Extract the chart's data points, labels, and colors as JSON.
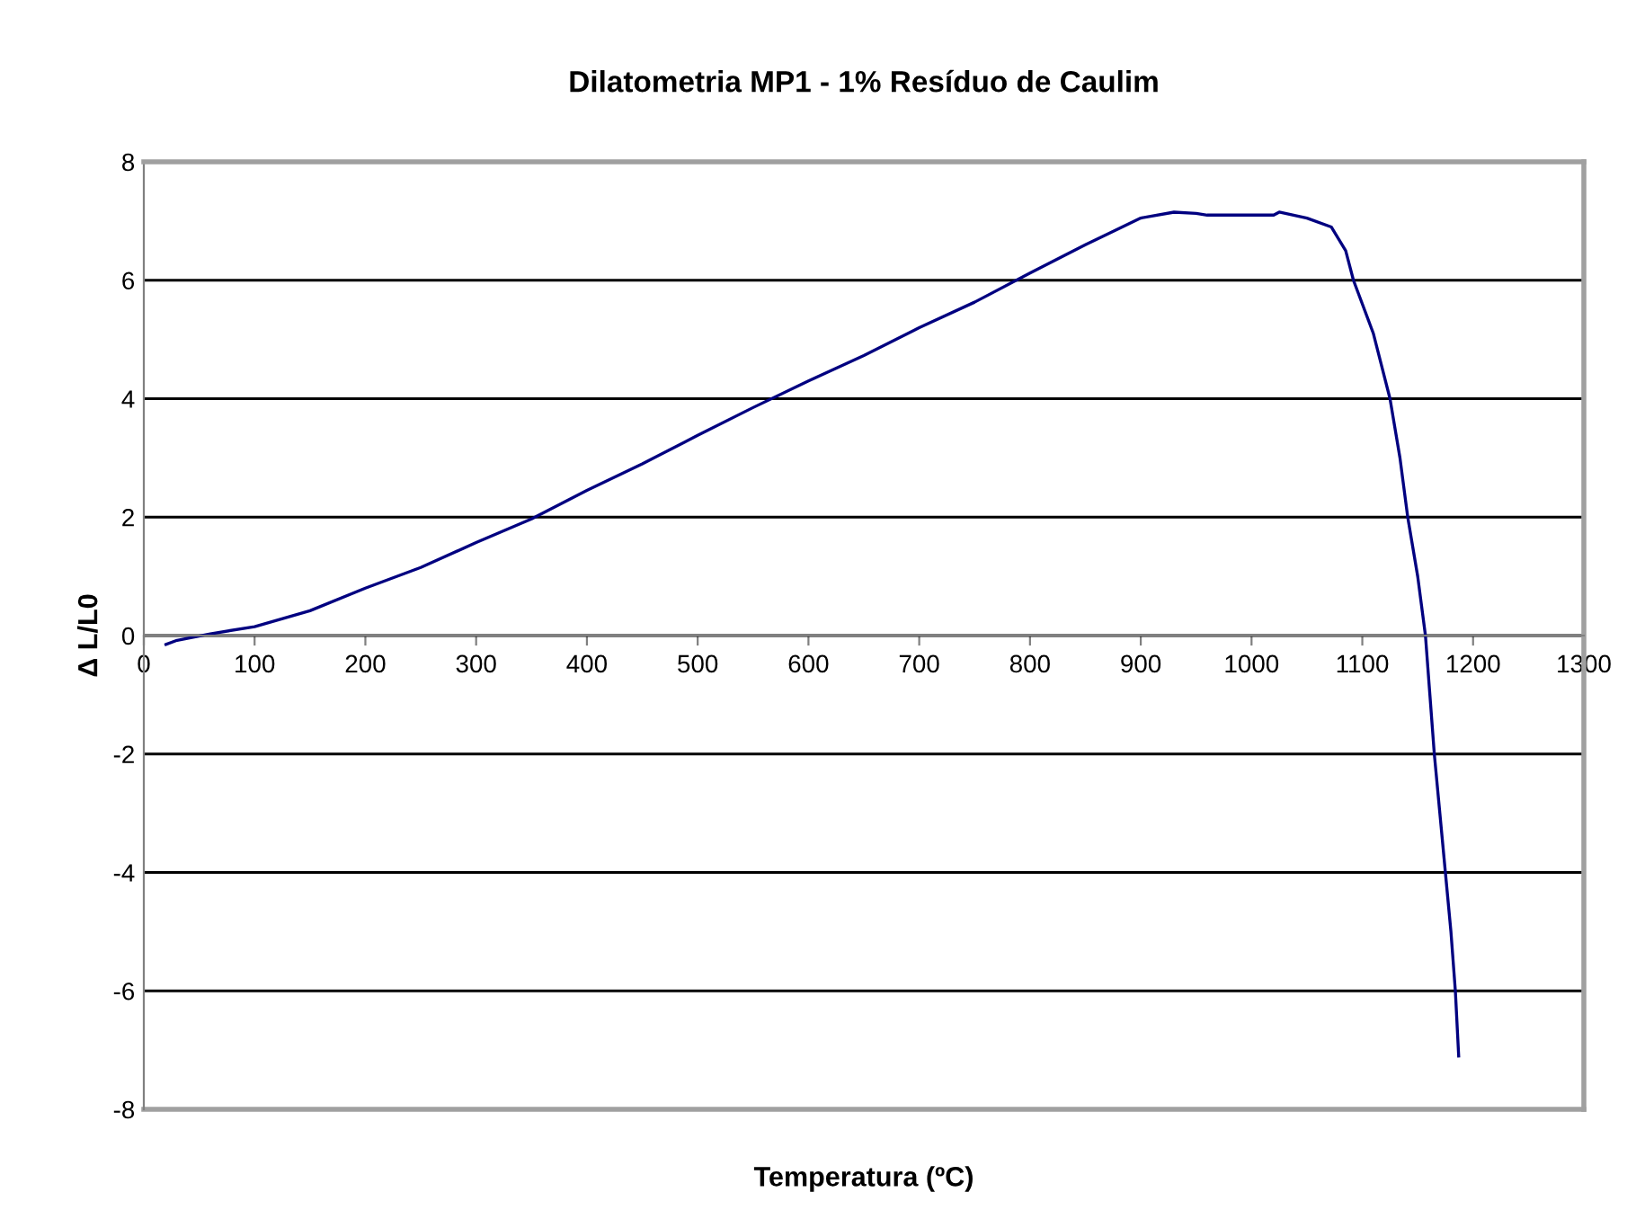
{
  "chart_data": {
    "type": "line",
    "title": "Dilatometria MP1 - 1% Resíduo de Caulim",
    "xlabel": "Temperatura (ºC)",
    "ylabel": "Δ L/L0",
    "xlim": [
      0,
      1300
    ],
    "xticks": [
      0,
      100,
      200,
      300,
      400,
      500,
      600,
      700,
      800,
      900,
      1000,
      1100,
      1200,
      1300
    ],
    "ylim": [
      -8,
      8
    ],
    "yticks": [
      -8,
      -6,
      -4,
      -2,
      0,
      2,
      4,
      6,
      8
    ],
    "grid": "y",
    "legend": false,
    "marker": "none",
    "line_style": "solid",
    "series": [
      {
        "color": "#000080",
        "x": [
          20,
          30,
          60,
          100,
          150,
          200,
          250,
          300,
          350,
          400,
          450,
          500,
          550,
          600,
          650,
          700,
          750,
          800,
          850,
          900,
          930,
          950,
          960,
          1000,
          1020,
          1025,
          1050,
          1072,
          1085,
          1092,
          1110,
          1125,
          1134,
          1141,
          1150,
          1157,
          1161,
          1165,
          1170,
          1175,
          1180,
          1184,
          1187
        ],
        "values": [
          -0.15,
          -0.08,
          0.03,
          0.15,
          0.42,
          0.8,
          1.15,
          1.57,
          1.97,
          2.45,
          2.9,
          3.38,
          3.85,
          4.3,
          4.73,
          5.2,
          5.63,
          6.12,
          6.6,
          7.05,
          7.15,
          7.13,
          7.1,
          7.1,
          7.1,
          7.15,
          7.05,
          6.9,
          6.5,
          6.0,
          5.1,
          4.0,
          3.0,
          2.0,
          1.0,
          0.0,
          -1.0,
          -2.0,
          -3.0,
          -4.0,
          -5.0,
          -6.0,
          -7.1
        ]
      }
    ]
  }
}
